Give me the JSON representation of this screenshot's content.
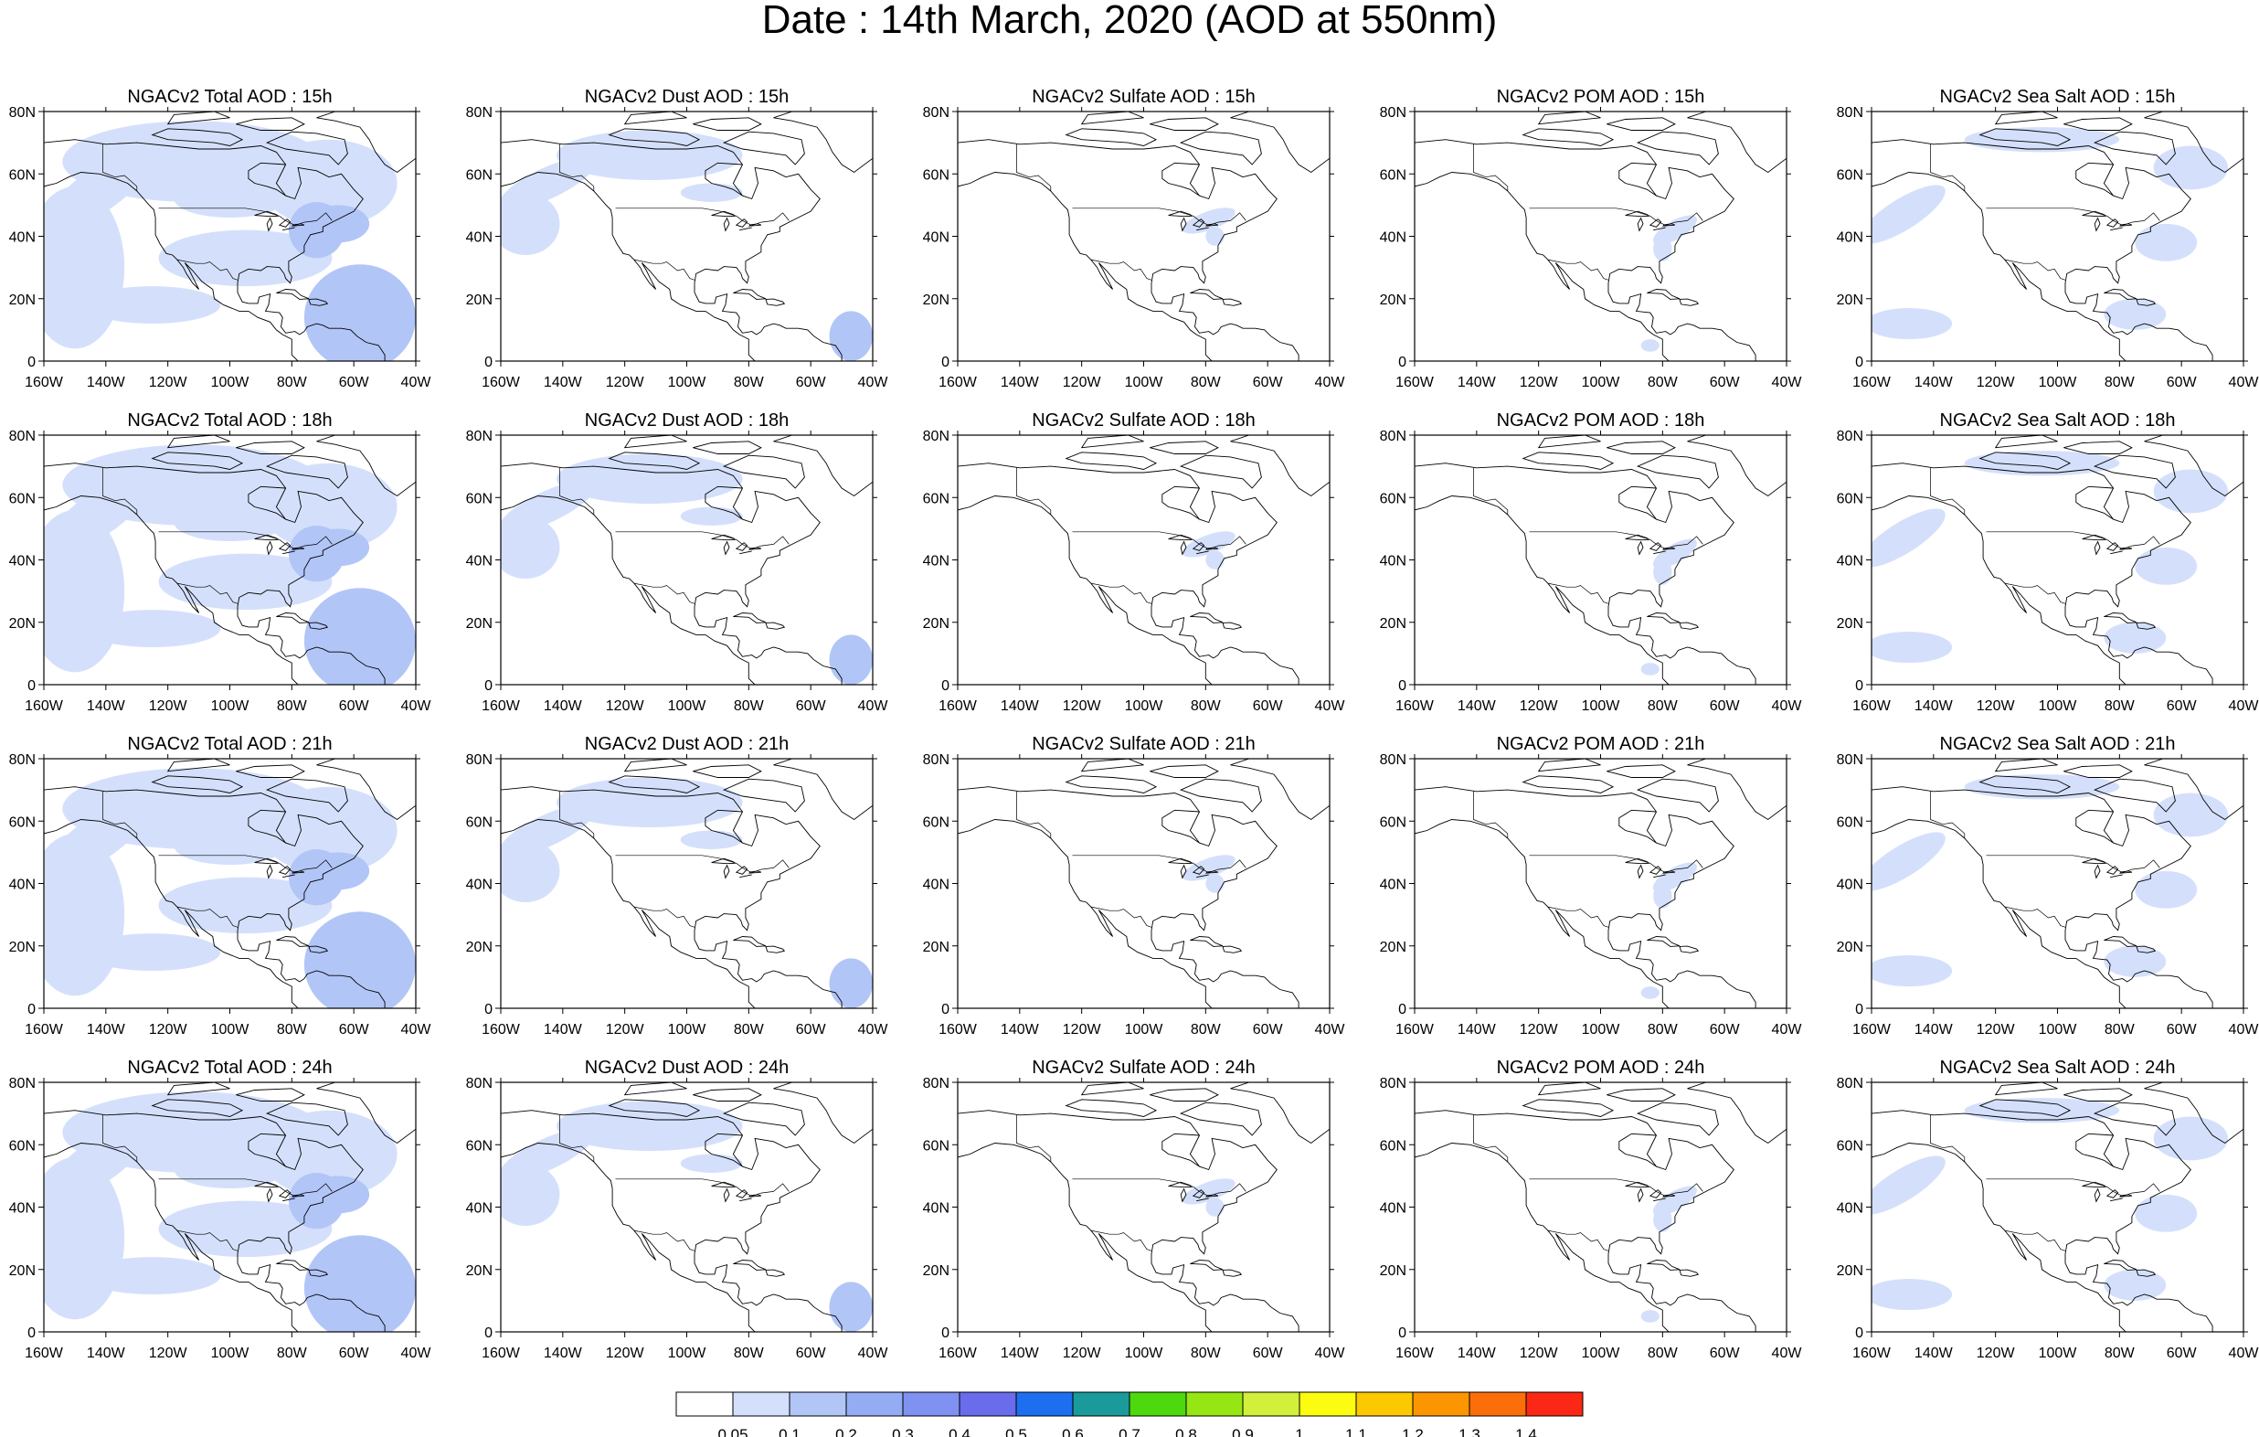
{
  "page": {
    "title": "Date : 14th March, 2020 (AOD at 550nm)"
  },
  "chart_data": {
    "type": "heatmap",
    "map_domain": {
      "lon_range": [
        -160,
        -40
      ],
      "lat_range": [
        0,
        80
      ]
    },
    "x_ticks": [
      "160W",
      "140W",
      "120W",
      "100W",
      "80W",
      "60W",
      "40W"
    ],
    "y_ticks": [
      "80N",
      "60N",
      "40N",
      "20N",
      "0"
    ],
    "columns": [
      "Total",
      "Dust",
      "Sulfate",
      "POM",
      "Sea Salt"
    ],
    "rows": [
      "15h",
      "18h",
      "21h",
      "24h"
    ],
    "panels": [
      {
        "title": "NGACv2 Total AOD : 15h",
        "field": "Total",
        "hour": "15h"
      },
      {
        "title": "NGACv2 Dust AOD : 15h",
        "field": "Dust",
        "hour": "15h"
      },
      {
        "title": "NGACv2 Sulfate AOD : 15h",
        "field": "Sulfate",
        "hour": "15h"
      },
      {
        "title": "NGACv2 POM AOD : 15h",
        "field": "POM",
        "hour": "15h"
      },
      {
        "title": "NGACv2 Sea Salt AOD : 15h",
        "field": "Sea Salt",
        "hour": "15h"
      },
      {
        "title": "NGACv2 Total AOD : 18h",
        "field": "Total",
        "hour": "18h"
      },
      {
        "title": "NGACv2 Dust AOD : 18h",
        "field": "Dust",
        "hour": "18h"
      },
      {
        "title": "NGACv2 Sulfate AOD : 18h",
        "field": "Sulfate",
        "hour": "18h"
      },
      {
        "title": "NGACv2 POM AOD : 18h",
        "field": "POM",
        "hour": "18h"
      },
      {
        "title": "NGACv2 Sea Salt AOD : 18h",
        "field": "Sea Salt",
        "hour": "18h"
      },
      {
        "title": "NGACv2 Total AOD : 21h",
        "field": "Total",
        "hour": "21h"
      },
      {
        "title": "NGACv2 Dust AOD : 21h",
        "field": "Dust",
        "hour": "21h"
      },
      {
        "title": "NGACv2 Sulfate AOD : 21h",
        "field": "Sulfate",
        "hour": "21h"
      },
      {
        "title": "NGACv2 POM AOD : 21h",
        "field": "POM",
        "hour": "21h"
      },
      {
        "title": "NGACv2 Sea Salt AOD : 21h",
        "field": "Sea Salt",
        "hour": "21h"
      },
      {
        "title": "NGACv2 Total AOD : 24h",
        "field": "Total",
        "hour": "24h"
      },
      {
        "title": "NGACv2 Dust AOD : 24h",
        "field": "Dust",
        "hour": "24h"
      },
      {
        "title": "NGACv2 Sulfate AOD : 24h",
        "field": "Sulfate",
        "hour": "24h"
      },
      {
        "title": "NGACv2 POM AOD : 24h",
        "field": "POM",
        "hour": "24h"
      },
      {
        "title": "NGACv2 Sea Salt  AOD : 24h",
        "field": "Sea Salt",
        "hour": "24h"
      }
    ],
    "colorbar": {
      "labels": [
        "0.05",
        "0.1",
        "0.2",
        "0.3",
        "0.4",
        "0.5",
        "0.6",
        "0.7",
        "0.8",
        "0.9",
        "1",
        "1.1",
        "1.2",
        "1.3",
        "1.4"
      ],
      "colors": [
        "#ffffff",
        "#d4e0fb",
        "#b2c5f7",
        "#93acf4",
        "#7f91f1",
        "#6a6cec",
        "#1e6ef0",
        "#1a9a9a",
        "#4ed80e",
        "#96e614",
        "#d2ef3c",
        "#fcfc10",
        "#fcc800",
        "#fc9600",
        "#fc6e0a",
        "#fa2814"
      ]
    }
  }
}
